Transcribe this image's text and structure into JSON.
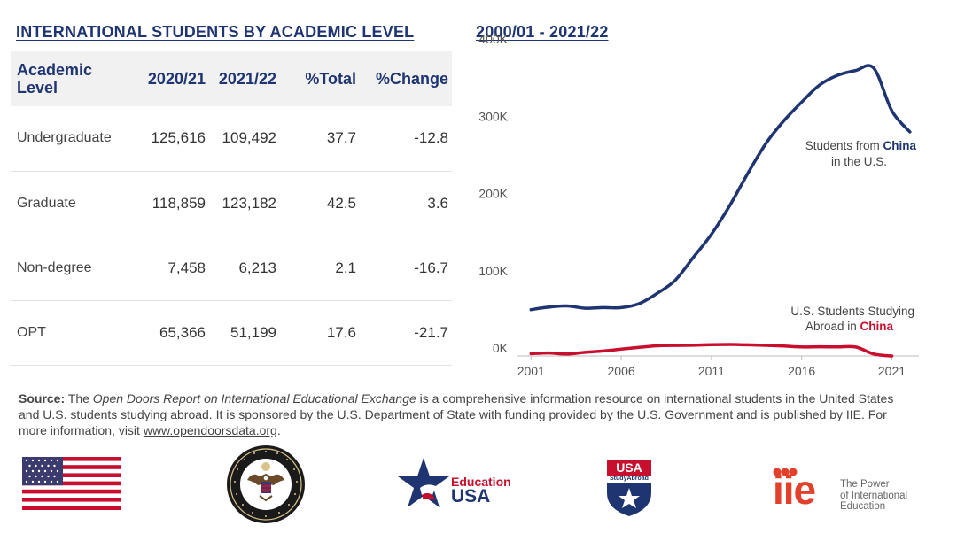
{
  "table_heading": "INTERNATIONAL STUDENTS BY ACADEMIC LEVEL",
  "table": {
    "headers": [
      "Academic\nLevel",
      "2020/21",
      "2021/22",
      "%Total",
      "%Change"
    ],
    "rows": [
      {
        "level": "Undergraduate",
        "y2020_21": "125,616",
        "y2021_22": "109,492",
        "pct_total": "37.7",
        "pct_change": "-12.8"
      },
      {
        "level": "Graduate",
        "y2020_21": "118,859",
        "y2021_22": "123,182",
        "pct_total": "42.5",
        "pct_change": "3.6"
      },
      {
        "level": "Non-degree",
        "y2020_21": "7,458",
        "y2021_22": "6,213",
        "pct_total": "2.1",
        "pct_change": "-16.7"
      },
      {
        "level": "OPT",
        "y2020_21": "65,366",
        "y2021_22": "51,199",
        "pct_total": "17.6",
        "pct_change": "-21.7"
      }
    ]
  },
  "chart_heading": "2000/01 - 2021/22",
  "chart_data": {
    "type": "line",
    "title": "2000/01 - 2021/22",
    "xlabel": "",
    "ylabel": "",
    "xlim": [
      2000.2,
      2022.5
    ],
    "ylim": [
      0,
      400000
    ],
    "x_ticks": [
      2001,
      2006,
      2011,
      2016,
      2021
    ],
    "x_tick_labels": [
      "2001",
      "2006",
      "2011",
      "2016",
      "2021"
    ],
    "y_ticks": [
      0,
      100000,
      200000,
      300000,
      400000
    ],
    "y_tick_labels": [
      "0K",
      "100K",
      "200K",
      "300K",
      "400K"
    ],
    "grid": false,
    "series": [
      {
        "name": "Students from China in the U.S.",
        "color": "#1f3571",
        "x": [
          2001,
          2002,
          2003,
          2004,
          2005,
          2006,
          2007,
          2008,
          2009,
          2010,
          2011,
          2012,
          2013,
          2014,
          2015,
          2016,
          2017,
          2018,
          2019,
          2020,
          2021,
          2022
        ],
        "y": [
          59952,
          63211,
          64757,
          61765,
          62582,
          62523,
          67723,
          81127,
          98235,
          127628,
          157558,
          194029,
          235597,
          274439,
          304040,
          328547,
          350755,
          363341,
          369548,
          372532,
          317299,
          290086
        ]
      },
      {
        "name": "U.S. Students Studying Abroad in China",
        "color": "#c8102e",
        "x": [
          2001,
          2002,
          2003,
          2004,
          2005,
          2006,
          2007,
          2008,
          2009,
          2010,
          2011,
          2012,
          2013,
          2014,
          2015,
          2016,
          2017,
          2018,
          2019,
          2020,
          2021
        ],
        "y": [
          2949,
          3911,
          2493,
          4737,
          6389,
          8830,
          11064,
          13165,
          13674,
          13910,
          14596,
          14887,
          14413,
          13763,
          12790,
          11688,
          11910,
          11639,
          11613,
          2481,
          0
        ]
      }
    ],
    "annotations": [
      {
        "line1": "Students from ",
        "highlight": "China",
        "line2": "in the U.S."
      },
      {
        "line1": "U.S. Students Studying",
        "line2_prefix": "Abroad in ",
        "highlight": "China"
      }
    ]
  },
  "source": {
    "label": "Source:",
    "text1": " The ",
    "report_title": "Open Doors Report on International Educational Exchange",
    "text2": " is a comprehensive information resource on international students in the United States and U.S. students studying abroad. It is sponsored by the U.S. Department of State with funding provided by the U.S. Government and is published by IIE. For more information, visit ",
    "link": "www.opendoorsdata.org",
    "text3": "."
  },
  "logos": {
    "education_usa": {
      "line1": "Education",
      "line2": "USA"
    },
    "usa_study_abroad": {
      "top": "USA",
      "sub": "StudyAbroad"
    },
    "iie": {
      "mark": "iie",
      "tag1": "The Power",
      "tag2": "of International",
      "tag3": "Education"
    },
    "colors": {
      "navy": "#1f3571",
      "red": "#c8102e",
      "orange": "#e2402a",
      "flag_blue": "#3c3b6e"
    }
  }
}
